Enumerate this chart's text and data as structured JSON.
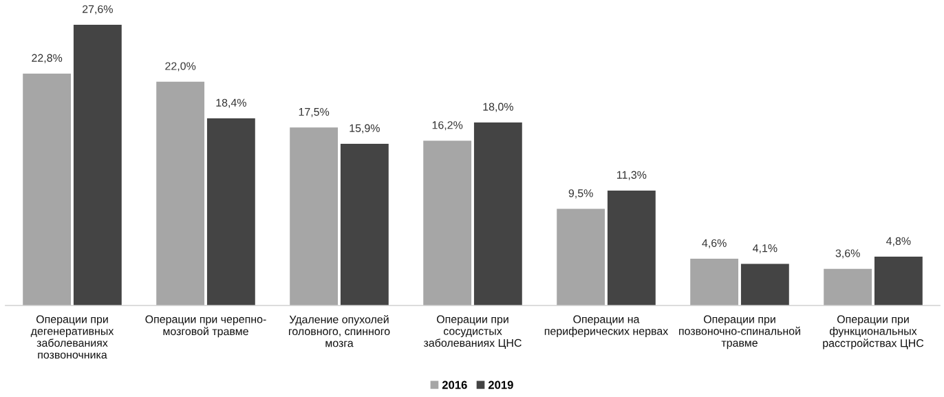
{
  "chart_data": {
    "type": "bar",
    "categories": [
      "Операции при\nдегенеративных\nзаболеваниях\nпозвоночника",
      "Операции при черепно-\nмозговой травме",
      "Удаление опухолей\nголовного, спинного\nмозга",
      "Операции при\nсосудистых\nзаболеваниях ЦНС",
      "Операции на\nпериферических нервах",
      "Операции при\nпозвоночно-спинальной\nтравме",
      "Операции при\nфункциональных\nрасстройствах ЦНС"
    ],
    "series": [
      {
        "name": "2016",
        "color": "#a6a6a6",
        "values": [
          22.8,
          22.0,
          17.5,
          16.2,
          9.5,
          4.6,
          3.6
        ],
        "value_labels": [
          "22,8%",
          "22,0%",
          "17,5%",
          "16,2%",
          "9,5%",
          "4,6%",
          "3,6%"
        ]
      },
      {
        "name": "2019",
        "color": "#444444",
        "values": [
          27.6,
          18.4,
          15.9,
          18.0,
          11.3,
          4.1,
          4.8
        ],
        "value_labels": [
          "27,6%",
          "18,4%",
          "15,9%",
          "18,0%",
          "11,3%",
          "4,1%",
          "4,8%"
        ]
      }
    ],
    "tick_labels": "x",
    "legend": "bottom",
    "grid": false
  }
}
